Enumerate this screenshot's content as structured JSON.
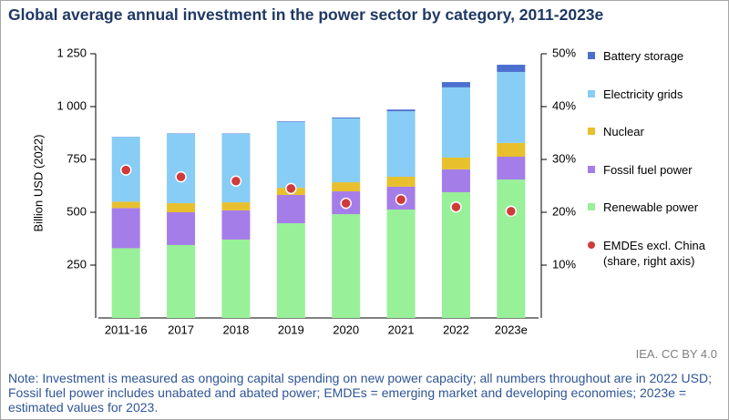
{
  "chart_data": {
    "type": "bar",
    "stacked": true,
    "title": "Global average annual investment in the power sector by category, 2011-2023e",
    "y_label": "Billion USD (2022)",
    "categories": [
      "2011-16",
      "2017",
      "2018",
      "2019",
      "2020",
      "2021",
      "2022",
      "2023e"
    ],
    "ylim": [
      0,
      1250
    ],
    "yticks": [
      {
        "value": 250,
        "label": "250"
      },
      {
        "value": 500,
        "label": "500"
      },
      {
        "value": 750,
        "label": "750"
      },
      {
        "value": 1000,
        "label": "1 000"
      },
      {
        "value": 1250,
        "label": "1 250"
      }
    ],
    "y2lim": [
      0,
      50
    ],
    "y2ticks": [
      {
        "value": 10,
        "label": "10%"
      },
      {
        "value": 20,
        "label": "20%"
      },
      {
        "value": 30,
        "label": "30%"
      },
      {
        "value": 40,
        "label": "40%"
      },
      {
        "value": 50,
        "label": "50%"
      }
    ],
    "series": [
      {
        "name": "Renewable power",
        "color": "#98f098",
        "values": [
          330,
          345,
          371,
          448,
          491,
          513,
          595,
          655
        ]
      },
      {
        "name": "Fossil fuel power",
        "color": "#a57de8",
        "values": [
          190,
          155,
          138,
          134,
          108,
          108,
          108,
          108
        ]
      },
      {
        "name": "Nuclear",
        "color": "#e8c02e",
        "values": [
          30,
          43,
          38,
          34,
          43,
          47,
          56,
          65
        ]
      },
      {
        "name": "Electricity grids",
        "color": "#87cdf5",
        "values": [
          306,
          328,
          324,
          311,
          302,
          310,
          332,
          336
        ]
      },
      {
        "name": "Battery storage",
        "color": "#4a6fcf",
        "values": [
          1,
          2,
          2,
          3,
          4,
          8,
          25,
          34
        ]
      },
      {
        "name": "EMDEs excl. China (share, right axis)",
        "color": "#d03a3a",
        "axis": "y2",
        "values": [
          28,
          26.7,
          25.9,
          24.5,
          21.7,
          22.4,
          21.0,
          20.2
        ]
      }
    ],
    "source": "IEA. CC BY 4.0",
    "note": "Note: Investment is measured as ongoing capital spending on new power capacity; all numbers throughout are in 2022 USD; Fossil fuel power includes unabated and abated power; EMDEs = emerging market and developing economies; 2023e = estimated values for 2023."
  }
}
